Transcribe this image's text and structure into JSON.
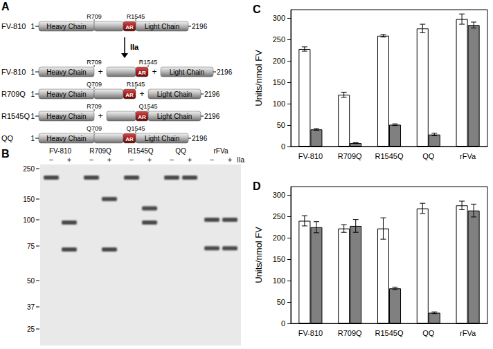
{
  "diagram": {
    "label": "A",
    "chain_labels": {
      "heavy": "Heavy Chain",
      "ar": "AR",
      "light": "Light Chain"
    },
    "start": "1",
    "end": "2196",
    "enzyme": "IIa",
    "join": "+",
    "rows": [
      {
        "name": "FV-810",
        "pieces": [
          [
            "heavy",
            "b",
            "ar",
            "light"
          ]
        ],
        "sites": [
          "R709",
          "R1545"
        ]
      },
      {
        "name": "FV-810",
        "pieces": [
          [
            "heavy"
          ],
          [
            "b",
            "ar"
          ],
          [
            "light"
          ]
        ],
        "sites": [
          "R709",
          "R1545"
        ]
      },
      {
        "name": "R709Q",
        "pieces": [
          [
            "heavy",
            "b",
            "ar"
          ],
          [
            "light"
          ]
        ],
        "sites": [
          "Q709",
          "R1545"
        ]
      },
      {
        "name": "R1545Q",
        "pieces": [
          [
            "heavy"
          ],
          [
            "b",
            "ar",
            "light"
          ]
        ],
        "sites": [
          "R709",
          "Q1545"
        ]
      },
      {
        "name": "QQ",
        "pieces": [
          [
            "heavy",
            "b",
            "ar",
            "light"
          ]
        ],
        "sites": [
          "Q709",
          "Q1545"
        ]
      }
    ]
  },
  "gel": {
    "label": "B",
    "enzyme": "IIa",
    "signs": [
      "−",
      "+"
    ],
    "markers": [
      250,
      150,
      100,
      75,
      50,
      37,
      25
    ],
    "lanes": [
      {
        "name": "FV-810",
        "minus": [
          215
        ],
        "plus": [
          97,
          72
        ]
      },
      {
        "name": "R709Q",
        "minus": [
          215
        ],
        "plus": [
          150,
          72
        ]
      },
      {
        "name": "R1545Q",
        "minus": [
          215
        ],
        "plus": [
          125,
          97
        ]
      },
      {
        "name": "QQ",
        "minus": [
          215
        ],
        "plus": [
          215
        ]
      },
      {
        "name": "rFVa",
        "minus": [
          100,
          73
        ],
        "plus": [
          100,
          73
        ]
      }
    ]
  },
  "chart_data": [
    {
      "type": "bar",
      "label": "C",
      "ylabel": "Units/nmol FV",
      "categories": [
        "FV-810",
        "R709Q",
        "R1545Q",
        "QQ",
        "rFVa"
      ],
      "series": [
        {
          "color": "#ffffff",
          "values": [
            228,
            121,
            259,
            276,
            298
          ],
          "errors": [
            5,
            6,
            3,
            10,
            12
          ]
        },
        {
          "color": "#808080",
          "values": [
            40,
            8,
            51,
            28,
            284
          ],
          "errors": [
            2,
            1,
            2,
            3,
            7
          ]
        }
      ],
      "ylim": [
        0,
        320
      ],
      "yticks": [
        0,
        50,
        100,
        150,
        200,
        250,
        300
      ],
      "grid": false
    },
    {
      "type": "bar",
      "label": "D",
      "ylabel": "Units/nmol FV",
      "categories": [
        "FV-810",
        "R709Q",
        "R1545Q",
        "QQ",
        "rFVa"
      ],
      "series": [
        {
          "color": "#ffffff",
          "values": [
            240,
            222,
            222,
            269,
            276
          ],
          "errors": [
            12,
            9,
            25,
            12,
            10
          ]
        },
        {
          "color": "#808080",
          "values": [
            225,
            228,
            82,
            25,
            264
          ],
          "errors": [
            13,
            15,
            3,
            2,
            15
          ]
        }
      ],
      "ylim": [
        0,
        320
      ],
      "yticks": [
        0,
        50,
        100,
        150,
        200,
        250,
        300
      ],
      "grid": false
    }
  ]
}
